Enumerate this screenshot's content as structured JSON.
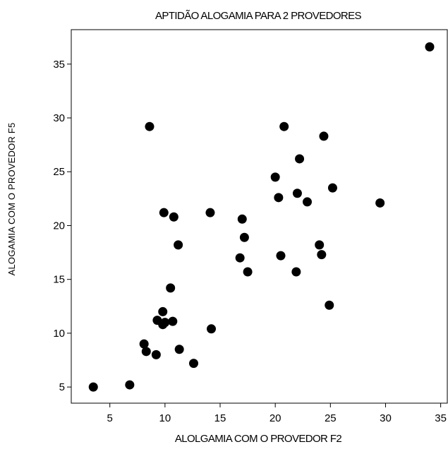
{
  "chart_data": {
    "type": "scatter",
    "title": "APTIDÃO ALOGAMIA PARA 2 PROVEDORES",
    "xlabel": "ALOLGAMIA COM O PROVEDOR F2",
    "ylabel": "ALOGAMIA COM O PROVEDOR F5",
    "xlim": [
      1.5,
      35.6
    ],
    "ylim": [
      3.5,
      38.2
    ],
    "xticks": [
      5,
      10,
      15,
      20,
      25,
      30,
      35
    ],
    "yticks": [
      5,
      10,
      15,
      20,
      25,
      30,
      35
    ],
    "xtick_labels": [
      "5",
      "10",
      "15",
      "20",
      "25",
      "30",
      "35"
    ],
    "ytick_labels": [
      "5",
      "10",
      "15",
      "20",
      "25",
      "30",
      "35"
    ],
    "grid": false,
    "legend": "none",
    "marker_color": "#000000",
    "points": [
      {
        "x": 3.5,
        "y": 5.0
      },
      {
        "x": 6.8,
        "y": 5.2
      },
      {
        "x": 8.1,
        "y": 9.0
      },
      {
        "x": 8.3,
        "y": 8.3
      },
      {
        "x": 8.6,
        "y": 29.2
      },
      {
        "x": 9.2,
        "y": 8.0
      },
      {
        "x": 9.3,
        "y": 11.2
      },
      {
        "x": 9.8,
        "y": 12.0
      },
      {
        "x": 9.8,
        "y": 10.8
      },
      {
        "x": 9.9,
        "y": 21.2
      },
      {
        "x": 10.0,
        "y": 11.0
      },
      {
        "x": 10.5,
        "y": 14.2
      },
      {
        "x": 10.7,
        "y": 11.1
      },
      {
        "x": 10.8,
        "y": 20.8
      },
      {
        "x": 11.2,
        "y": 18.2
      },
      {
        "x": 11.3,
        "y": 8.5
      },
      {
        "x": 12.6,
        "y": 7.2
      },
      {
        "x": 14.1,
        "y": 21.2
      },
      {
        "x": 14.2,
        "y": 10.4
      },
      {
        "x": 16.8,
        "y": 17.0
      },
      {
        "x": 17.0,
        "y": 20.6
      },
      {
        "x": 17.2,
        "y": 18.9
      },
      {
        "x": 17.5,
        "y": 15.7
      },
      {
        "x": 20.0,
        "y": 24.5
      },
      {
        "x": 20.3,
        "y": 22.6
      },
      {
        "x": 20.5,
        "y": 17.2
      },
      {
        "x": 20.8,
        "y": 29.2
      },
      {
        "x": 21.9,
        "y": 15.7
      },
      {
        "x": 22.0,
        "y": 23.0
      },
      {
        "x": 22.2,
        "y": 26.2
      },
      {
        "x": 22.9,
        "y": 22.2
      },
      {
        "x": 24.0,
        "y": 18.2
      },
      {
        "x": 24.2,
        "y": 17.3
      },
      {
        "x": 24.4,
        "y": 28.3
      },
      {
        "x": 24.9,
        "y": 12.6
      },
      {
        "x": 25.2,
        "y": 23.5
      },
      {
        "x": 29.5,
        "y": 22.1
      },
      {
        "x": 34.0,
        "y": 36.6
      }
    ]
  }
}
